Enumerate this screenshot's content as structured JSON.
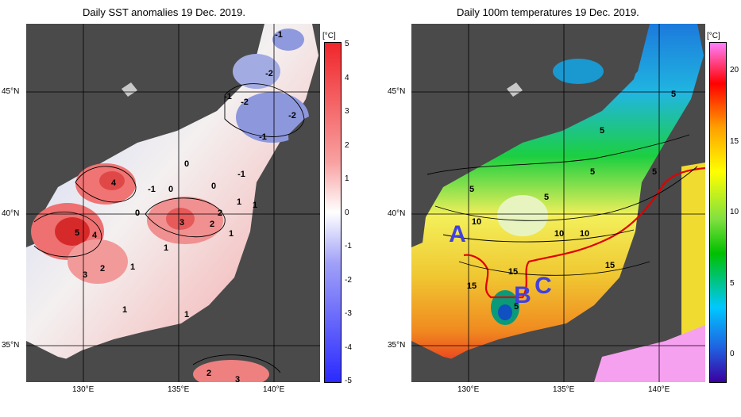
{
  "left_panel": {
    "title": "Daily SST anomalies 19 Dec. 2019.",
    "colorbar": {
      "unit": "[°C]",
      "ticks": [
        "5",
        "4",
        "3",
        "2",
        "1",
        "0",
        "-1",
        "-2",
        "-3",
        "-4",
        "-5"
      ],
      "colors": [
        "#f0262a",
        "#ffffff",
        "#2a2aff"
      ]
    },
    "contour_labels": [
      "-1",
      "-2",
      "-1",
      "-2",
      "-2",
      "-1",
      "-1",
      "4",
      "0",
      "0",
      "-1",
      "0",
      "0",
      "1",
      "2",
      "3",
      "2",
      "5",
      "4",
      "1",
      "1",
      "3",
      "2",
      "1",
      "1",
      "1",
      "2",
      "3",
      "1"
    ]
  },
  "right_panel": {
    "title": "Daily 100m temperatures 19 Dec. 2019.",
    "colorbar": {
      "unit": "[°C]",
      "ticks": [
        "20",
        "15",
        "10",
        "5",
        "0"
      ],
      "colors": [
        "#3a00a0",
        "#00c8ff",
        "#00c000",
        "#ffff00",
        "#ff0000",
        "#ff80ff"
      ]
    },
    "contour_labels": [
      "5",
      "5",
      "5",
      "5",
      "5",
      "5",
      "10",
      "10",
      "10",
      "15",
      "15",
      "5",
      "15"
    ],
    "markers": [
      "A",
      "B",
      "C"
    ],
    "marker_color": "#4040e0",
    "front_line_color": "#e00000"
  },
  "axes": {
    "lat_labels": [
      "45°N",
      "40°N",
      "35°N"
    ],
    "lon_labels": [
      "130°E",
      "135°E",
      "140°E"
    ]
  },
  "colors": {
    "land": "#4a4a4a",
    "missing": "#c8c8c8"
  }
}
